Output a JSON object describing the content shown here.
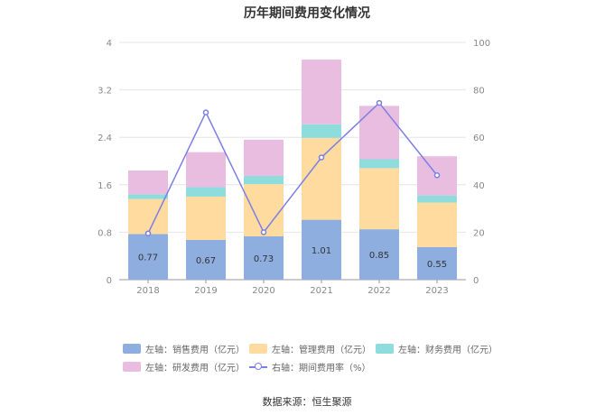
{
  "title": "历年期间费用变化情况",
  "source": "数据来源：恒生聚源",
  "colors": {
    "sales": "#8eaee0",
    "admin": "#ffdba0",
    "finance": "#8fdcdc",
    "rd": "#e8bde0",
    "rate": "#7b7fe6"
  },
  "chart_data": {
    "type": "bar",
    "stacked": true,
    "title": "历年期间费用变化情况",
    "categories": [
      "2018",
      "2019",
      "2020",
      "2021",
      "2022",
      "2023"
    ],
    "left_axis": {
      "min": 0,
      "max": 4,
      "ticks": [
        "0",
        "0.8",
        "1.6",
        "2.4",
        "3.2",
        "4"
      ]
    },
    "right_axis": {
      "min": 0,
      "max": 100,
      "ticks": [
        "0",
        "20",
        "40",
        "60",
        "80",
        "100"
      ]
    },
    "series": [
      {
        "name": "左轴：销售费用（亿元）",
        "axis": "left",
        "type": "bar",
        "values": [
          0.77,
          0.67,
          0.73,
          1.01,
          0.85,
          0.55
        ],
        "labels": [
          "0.77",
          "0.67",
          "0.73",
          "1.01",
          "0.85",
          "0.55"
        ]
      },
      {
        "name": "左轴：管理费用（亿元）",
        "axis": "left",
        "type": "bar",
        "values": [
          0.59,
          0.73,
          0.88,
          1.38,
          1.03,
          0.75
        ]
      },
      {
        "name": "左轴：财务费用（亿元）",
        "axis": "left",
        "type": "bar",
        "values": [
          0.08,
          0.16,
          0.14,
          0.23,
          0.15,
          0.12
        ]
      },
      {
        "name": "左轴：研发费用（亿元）",
        "axis": "left",
        "type": "bar",
        "values": [
          0.4,
          0.59,
          0.61,
          1.09,
          0.9,
          0.66
        ]
      },
      {
        "name": "右轴：期间费用率（%）",
        "axis": "right",
        "type": "line",
        "values": [
          19.5,
          70.5,
          20.0,
          51.5,
          74.5,
          44.0
        ]
      }
    ],
    "grid": true,
    "legend_position": "bottom"
  }
}
